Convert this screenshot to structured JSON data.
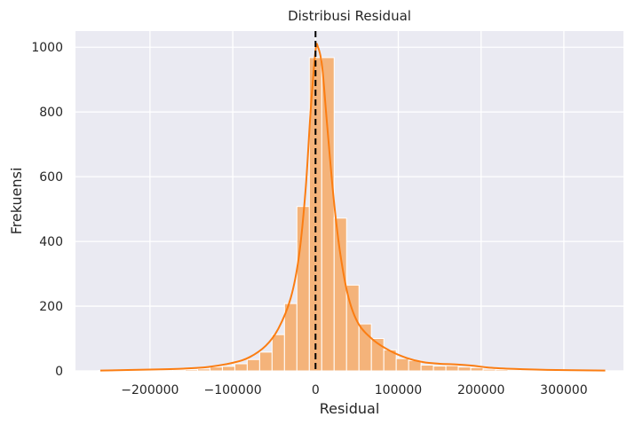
{
  "chart_data": {
    "type": "bar",
    "title": "Distribusi Residual",
    "xlabel": "Residual",
    "ylabel": "Frekuensi",
    "xlim": [
      -290000,
      372000
    ],
    "ylim": [
      0,
      1050
    ],
    "xticks": [
      -200000,
      -100000,
      0,
      100000,
      200000,
      300000
    ],
    "xtick_labels": [
      "−200000",
      "−100000",
      "0",
      "100000",
      "200000",
      "300000"
    ],
    "yticks": [
      0,
      200,
      400,
      600,
      800,
      1000
    ],
    "ytick_labels": [
      "0",
      "200",
      "400",
      "600",
      "800",
      "1000"
    ],
    "grid": true,
    "bin_width": 15000,
    "bins": [
      {
        "start": -262500,
        "count": 1
      },
      {
        "start": -247500,
        "count": 1
      },
      {
        "start": -232500,
        "count": 1
      },
      {
        "start": -217500,
        "count": 2
      },
      {
        "start": -202500,
        "count": 2
      },
      {
        "start": -187500,
        "count": 3
      },
      {
        "start": -172500,
        "count": 3
      },
      {
        "start": -157500,
        "count": 4
      },
      {
        "start": -142500,
        "count": 6
      },
      {
        "start": -127500,
        "count": 12
      },
      {
        "start": -112500,
        "count": 14
      },
      {
        "start": -97500,
        "count": 22
      },
      {
        "start": -82500,
        "count": 35
      },
      {
        "start": -67500,
        "count": 58
      },
      {
        "start": -52500,
        "count": 112
      },
      {
        "start": -37500,
        "count": 208
      },
      {
        "start": -22500,
        "count": 508
      },
      {
        "start": -7500,
        "count": 968
      },
      {
        "start": 7500,
        "count": 968
      },
      {
        "start": 22500,
        "count": 472
      },
      {
        "start": 37500,
        "count": 265
      },
      {
        "start": 52500,
        "count": 145
      },
      {
        "start": 67500,
        "count": 100
      },
      {
        "start": 82500,
        "count": 65
      },
      {
        "start": 97500,
        "count": 38
      },
      {
        "start": 112500,
        "count": 32
      },
      {
        "start": 127500,
        "count": 18
      },
      {
        "start": 142500,
        "count": 15
      },
      {
        "start": 157500,
        "count": 16
      },
      {
        "start": 172500,
        "count": 12
      },
      {
        "start": 187500,
        "count": 10
      },
      {
        "start": 202500,
        "count": 5
      },
      {
        "start": 217500,
        "count": 4
      },
      {
        "start": 232500,
        "count": 3
      },
      {
        "start": 247500,
        "count": 3
      },
      {
        "start": 262500,
        "count": 2
      },
      {
        "start": 277500,
        "count": 2
      },
      {
        "start": 292500,
        "count": 2
      },
      {
        "start": 307500,
        "count": 1
      },
      {
        "start": 322500,
        "count": 1
      },
      {
        "start": 337500,
        "count": 1
      }
    ],
    "kde": {
      "x": [
        -260000,
        -200000,
        -160000,
        -130000,
        -100000,
        -80000,
        -60000,
        -45000,
        -30000,
        -20000,
        -12000,
        -6000,
        0,
        3000,
        8000,
        14000,
        22000,
        30000,
        40000,
        52000,
        70000,
        90000,
        110000,
        130000,
        150000,
        170000,
        190000,
        210000,
        240000,
        280000,
        350000
      ],
      "y": [
        1,
        4,
        7,
        12,
        25,
        42,
        78,
        130,
        225,
        355,
        560,
        800,
        990,
        1000,
        940,
        760,
        530,
        360,
        225,
        145,
        95,
        62,
        40,
        27,
        22,
        20,
        16,
        10,
        6,
        3,
        1
      ]
    },
    "vline": {
      "x": 0,
      "style": "dashed"
    },
    "colors": {
      "bar": "#f4b37a",
      "bar_edge": "#ffffff",
      "kde": "#fb7d12",
      "vline": "#000000",
      "plot_bg": "#eaeaf2",
      "grid": "#ffffff"
    }
  }
}
